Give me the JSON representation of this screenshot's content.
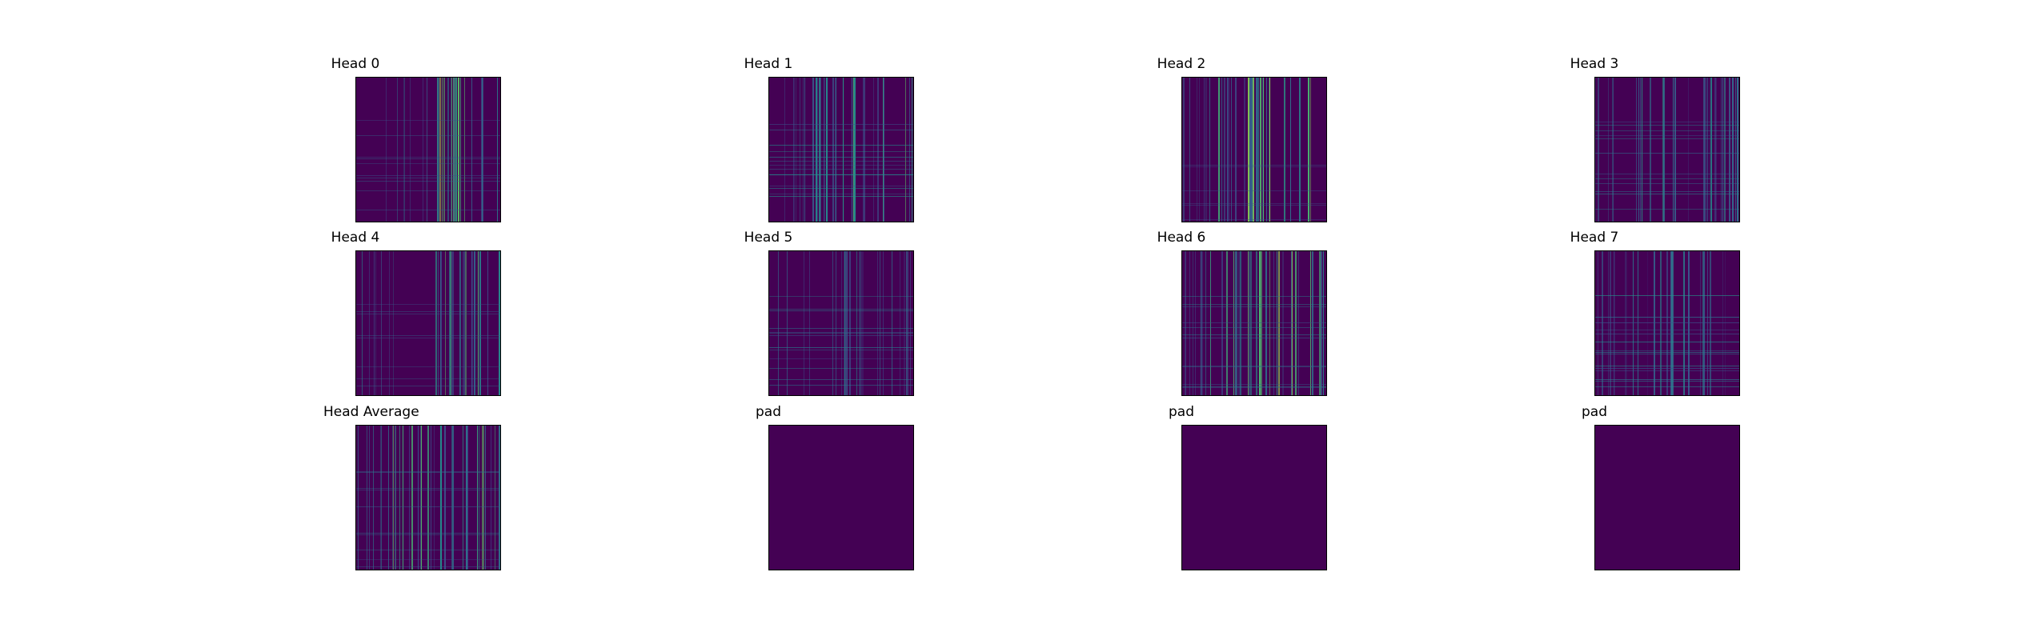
{
  "chart_data": [
    {
      "type": "heatmap",
      "title": "Head 0",
      "pattern": {
        "seed": 11,
        "col_start": 0.55,
        "n_cols": 22,
        "row_bands": 10,
        "row_strength": 0.25,
        "col_strength": 0.9,
        "base": 0.02
      }
    },
    {
      "type": "heatmap",
      "title": "Head 1",
      "pattern": {
        "seed": 23,
        "col_start": 0.3,
        "n_cols": 26,
        "row_bands": 14,
        "row_strength": 0.55,
        "col_strength": 0.75,
        "base": 0.03
      }
    },
    {
      "type": "heatmap",
      "title": "Head 2",
      "pattern": {
        "seed": 37,
        "col_start": 0.25,
        "n_cols": 30,
        "row_bands": 6,
        "row_strength": 0.15,
        "col_strength": 0.85,
        "base": 0.03
      }
    },
    {
      "type": "heatmap",
      "title": "Head 3",
      "pattern": {
        "seed": 41,
        "col_start": 0.3,
        "n_cols": 26,
        "row_bands": 12,
        "row_strength": 0.5,
        "col_strength": 0.6,
        "base": 0.02
      }
    },
    {
      "type": "heatmap",
      "title": "Head 4",
      "pattern": {
        "seed": 53,
        "col_start": 0.55,
        "n_cols": 22,
        "row_bands": 8,
        "row_strength": 0.2,
        "col_strength": 0.8,
        "base": 0.02
      }
    },
    {
      "type": "heatmap",
      "title": "Head 5",
      "pattern": {
        "seed": 67,
        "col_start": 0.5,
        "n_cols": 20,
        "row_bands": 14,
        "row_strength": 0.45,
        "col_strength": 0.5,
        "base": 0.03
      }
    },
    {
      "type": "heatmap",
      "title": "Head 6",
      "pattern": {
        "seed": 71,
        "col_start": 0.2,
        "n_cols": 32,
        "row_bands": 12,
        "row_strength": 0.4,
        "col_strength": 0.85,
        "base": 0.03
      }
    },
    {
      "type": "heatmap",
      "title": "Head 7",
      "pattern": {
        "seed": 83,
        "col_start": 0.2,
        "n_cols": 24,
        "row_bands": 16,
        "row_strength": 0.6,
        "col_strength": 0.45,
        "base": 0.03
      }
    },
    {
      "type": "heatmap",
      "title": "Head Average",
      "pattern": {
        "seed": 97,
        "col_start": 0.25,
        "n_cols": 30,
        "row_bands": 10,
        "row_strength": 0.3,
        "col_strength": 0.8,
        "base": 0.03
      }
    },
    {
      "type": "heatmap",
      "title": "pad",
      "pattern": {
        "empty": true
      }
    },
    {
      "type": "heatmap",
      "title": "pad",
      "pattern": {
        "empty": true
      }
    },
    {
      "type": "heatmap",
      "title": "pad",
      "pattern": {
        "empty": true
      }
    }
  ],
  "colormap": {
    "name": "viridis",
    "low": "#440154",
    "mid": "#21918c",
    "high": "#fde725"
  },
  "colorbar": false,
  "grid": false
}
